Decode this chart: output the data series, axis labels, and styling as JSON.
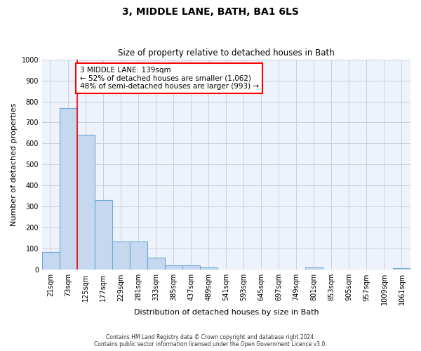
{
  "title": "3, MIDDLE LANE, BATH, BA1 6LS",
  "subtitle": "Size of property relative to detached houses in Bath",
  "xlabel": "Distribution of detached houses by size in Bath",
  "ylabel": "Number of detached properties",
  "bar_labels": [
    "21sqm",
    "73sqm",
    "125sqm",
    "177sqm",
    "229sqm",
    "281sqm",
    "333sqm",
    "385sqm",
    "437sqm",
    "489sqm",
    "541sqm",
    "593sqm",
    "645sqm",
    "697sqm",
    "749sqm",
    "801sqm",
    "853sqm",
    "905sqm",
    "957sqm",
    "1009sqm",
    "1061sqm"
  ],
  "bar_values": [
    83,
    770,
    640,
    330,
    133,
    133,
    58,
    22,
    22,
    10,
    0,
    0,
    0,
    0,
    0,
    12,
    0,
    0,
    0,
    0,
    8
  ],
  "bar_color": "#c5d8f0",
  "bar_edge_color": "#6aaad4",
  "annotation_text": "3 MIDDLE LANE: 139sqm\n← 52% of detached houses are smaller (1,062)\n48% of semi-detached houses are larger (993) →",
  "vline_color": "red",
  "vline_x_index": 2,
  "ylim": [
    0,
    1000
  ],
  "yticks": [
    0,
    100,
    200,
    300,
    400,
    500,
    600,
    700,
    800,
    900,
    1000
  ],
  "grid_color": "#c8d0e0",
  "background_color": "#eef2fb",
  "footer_line1": "Contains HM Land Registry data © Crown copyright and database right 2024.",
  "footer_line2": "Contains public sector information licensed under the Open Government Licence v3.0.",
  "title_fontsize": 10,
  "subtitle_fontsize": 8.5,
  "axis_label_fontsize": 8,
  "tick_fontsize": 7
}
